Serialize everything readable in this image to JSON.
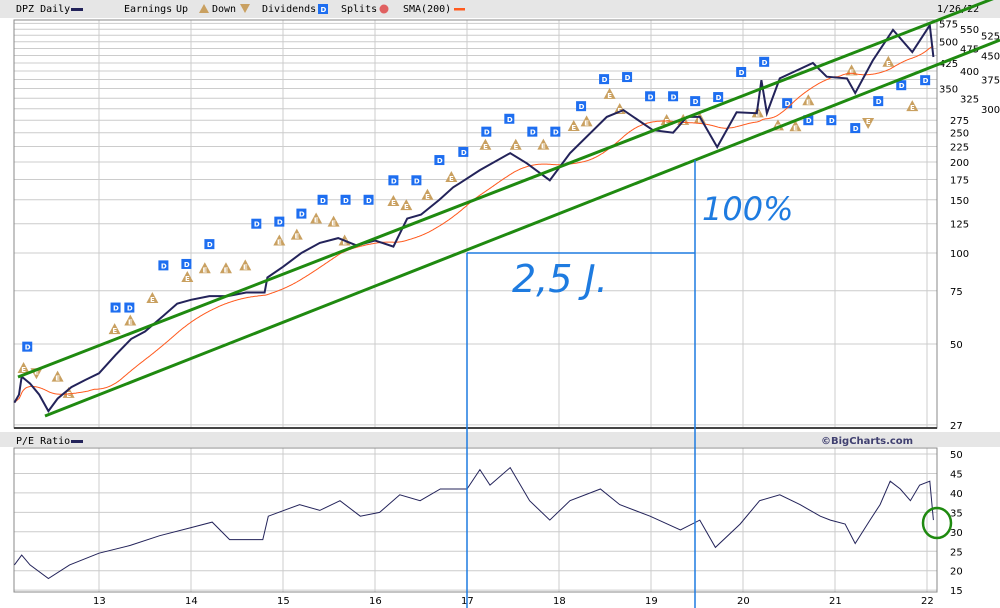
{
  "header": {
    "symbol_label": "DPZ Daily",
    "earnings_label": "Earnings",
    "up_label": "Up",
    "down_label": "Down",
    "dividends_label": "Dividends",
    "splits_label": "Splits",
    "sma_label": "SMA(200)",
    "date": "1/26/22"
  },
  "lower_header": {
    "title": "P/E Ratio",
    "credit": "©BigCharts.com"
  },
  "annotations": {
    "percent_text": "100%",
    "duration_text": "2,5 J."
  },
  "colors": {
    "price": "#23235a",
    "sma": "#ff5a1e",
    "channel": "#1f8a10",
    "annotation": "#1e7be0",
    "dividend": "#1e6ef0",
    "earnings": "#c9a060",
    "header_bg": "#e6e6e6",
    "grid": "#cccccc"
  },
  "chart_data": [
    {
      "type": "line",
      "title": "DPZ Daily",
      "scale": "log",
      "ylim": [
        27,
        575
      ],
      "xlim": [
        2012.08,
        2022.07
      ],
      "grid": true,
      "x_tick_labels": [
        "13",
        "14",
        "15",
        "16",
        "17",
        "18",
        "19",
        "20",
        "21",
        "22"
      ],
      "y_tick_labels": [
        "575",
        "550",
        "525",
        "500",
        "475",
        "450",
        "425",
        "400",
        "375",
        "350",
        "325",
        "300",
        "275",
        "250",
        "225",
        "200",
        "175",
        "150",
        "125",
        "100",
        "75",
        "50",
        "27"
      ],
      "series": [
        {
          "name": "DPZ Daily",
          "points": [
            [
              2012.08,
              32
            ],
            [
              2012.13,
              34
            ],
            [
              2012.16,
              39
            ],
            [
              2012.25,
              37
            ],
            [
              2012.35,
              34
            ],
            [
              2012.45,
              30
            ],
            [
              2012.55,
              33
            ],
            [
              2012.7,
              36
            ],
            [
              2012.85,
              38
            ],
            [
              2013.0,
              40
            ],
            [
              2013.18,
              46
            ],
            [
              2013.35,
              52
            ],
            [
              2013.5,
              55
            ],
            [
              2013.7,
              62
            ],
            [
              2013.85,
              68
            ],
            [
              2014.0,
              70
            ],
            [
              2014.2,
              72
            ],
            [
              2014.4,
              72
            ],
            [
              2014.6,
              74
            ],
            [
              2014.8,
              74
            ],
            [
              2014.83,
              83
            ],
            [
              2015.0,
              90
            ],
            [
              2015.2,
              100
            ],
            [
              2015.4,
              108
            ],
            [
              2015.6,
              112
            ],
            [
              2015.8,
              106
            ],
            [
              2016.0,
              110
            ],
            [
              2016.2,
              105
            ],
            [
              2016.35,
              130
            ],
            [
              2016.5,
              134
            ],
            [
              2016.7,
              150
            ],
            [
              2016.85,
              165
            ],
            [
              2016.92,
              170
            ],
            [
              2017.14,
              188
            ],
            [
              2017.47,
              214
            ],
            [
              2017.65,
              198
            ],
            [
              2017.9,
              174
            ],
            [
              2018.12,
              214
            ],
            [
              2018.52,
              282
            ],
            [
              2018.7,
              297
            ],
            [
              2019.02,
              255
            ],
            [
              2019.24,
              250
            ],
            [
              2019.39,
              282
            ],
            [
              2019.53,
              282
            ],
            [
              2019.72,
              224
            ],
            [
              2019.93,
              292
            ],
            [
              2020.15,
              290
            ],
            [
              2020.2,
              373
            ],
            [
              2020.26,
              290
            ],
            [
              2020.4,
              378
            ],
            [
              2020.76,
              425
            ],
            [
              2020.91,
              383
            ],
            [
              2021.13,
              378
            ],
            [
              2021.22,
              338
            ],
            [
              2021.41,
              433
            ],
            [
              2021.63,
              547
            ],
            [
              2021.84,
              462
            ],
            [
              2022.03,
              567
            ],
            [
              2022.07,
              445
            ]
          ]
        },
        {
          "name": "SMA(200)",
          "computed_from": "DPZ Daily"
        }
      ],
      "dividends": [
        [
          2012.22,
          49
        ],
        [
          2013.18,
          66
        ],
        [
          2013.33,
          66
        ],
        [
          2013.7,
          91
        ],
        [
          2013.95,
          92
        ],
        [
          2014.2,
          107
        ],
        [
          2014.71,
          125
        ],
        [
          2014.96,
          127
        ],
        [
          2015.2,
          135
        ],
        [
          2015.43,
          150
        ],
        [
          2015.68,
          150
        ],
        [
          2015.93,
          150
        ],
        [
          2016.2,
          174
        ],
        [
          2016.45,
          174
        ],
        [
          2016.7,
          203
        ],
        [
          2016.96,
          216
        ],
        [
          2017.21,
          252
        ],
        [
          2017.46,
          278
        ],
        [
          2017.71,
          252
        ],
        [
          2017.96,
          252
        ],
        [
          2018.24,
          306
        ],
        [
          2018.49,
          376
        ],
        [
          2018.74,
          382
        ],
        [
          2018.99,
          330
        ],
        [
          2019.24,
          330
        ],
        [
          2019.48,
          318
        ],
        [
          2019.73,
          328
        ],
        [
          2019.98,
          397
        ],
        [
          2020.23,
          429
        ],
        [
          2020.48,
          313
        ],
        [
          2020.71,
          275
        ],
        [
          2020.96,
          275
        ],
        [
          2021.22,
          259
        ],
        [
          2021.47,
          318
        ],
        [
          2021.72,
          359
        ],
        [
          2021.98,
          373
        ]
      ],
      "earnings_up": [
        [
          2012.18,
          46
        ],
        [
          2012.55,
          39
        ],
        [
          2012.67,
          42
        ],
        [
          2013.17,
          56
        ],
        [
          2013.34,
          66
        ],
        [
          2013.58,
          71
        ],
        [
          2013.96,
          92
        ],
        [
          2014.15,
          89
        ],
        [
          2014.38,
          89
        ],
        [
          2014.59,
          91
        ],
        [
          2014.96,
          110
        ],
        [
          2015.15,
          127
        ],
        [
          2015.36,
          130
        ],
        [
          2015.55,
          127
        ],
        [
          2015.67,
          110
        ],
        [
          2016.2,
          164
        ],
        [
          2016.34,
          144
        ],
        [
          2016.57,
          172
        ],
        [
          2016.83,
          197
        ],
        [
          2017.2,
          228
        ],
        [
          2017.53,
          228
        ],
        [
          2017.83,
          252
        ],
        [
          2018.16,
          263
        ],
        [
          2018.3,
          301
        ],
        [
          2018.55,
          336
        ],
        [
          2018.66,
          365
        ],
        [
          2019.17,
          304
        ],
        [
          2019.35,
          336
        ],
        [
          2019.53,
          340
        ],
        [
          2020.16,
          292
        ],
        [
          2020.38,
          292
        ],
        [
          2020.57,
          320
        ],
        [
          2020.71,
          320
        ],
        [
          2021.18,
          402
        ],
        [
          2021.58,
          429
        ],
        [
          2021.84,
          373
        ]
      ],
      "earnings_down": [
        [
          2012.32,
          40
        ],
        [
          2021.36,
          328
        ]
      ]
    },
    {
      "type": "line",
      "title": "P/E Ratio",
      "ylim": [
        15,
        50
      ],
      "grid": true,
      "x_tick_labels": [
        "13",
        "14",
        "15",
        "16",
        "17",
        "18",
        "19",
        "20",
        "21",
        "22"
      ],
      "y_tick_labels": [
        "50",
        "45",
        "40",
        "35",
        "30",
        "25",
        "20",
        "15"
      ],
      "series": [
        {
          "name": "P/E Ratio",
          "points": [
            [
              2012.08,
              21.5
            ],
            [
              2012.16,
              24
            ],
            [
              2012.25,
              21.5
            ],
            [
              2012.45,
              18
            ],
            [
              2012.68,
              21.5
            ],
            [
              2013.0,
              24.5
            ],
            [
              2013.34,
              26.5
            ],
            [
              2013.66,
              29
            ],
            [
              2013.99,
              31
            ],
            [
              2014.23,
              32.5
            ],
            [
              2014.42,
              28
            ],
            [
              2014.78,
              28
            ],
            [
              2014.84,
              34
            ],
            [
              2015.18,
              37
            ],
            [
              2015.4,
              35.5
            ],
            [
              2015.62,
              38
            ],
            [
              2015.84,
              34
            ],
            [
              2016.05,
              35
            ],
            [
              2016.27,
              39.5
            ],
            [
              2016.49,
              38
            ],
            [
              2016.71,
              41
            ],
            [
              2017.0,
              41
            ],
            [
              2017.14,
              46
            ],
            [
              2017.25,
              42
            ],
            [
              2017.47,
              46.5
            ],
            [
              2017.68,
              38
            ],
            [
              2017.9,
              33
            ],
            [
              2018.12,
              38
            ],
            [
              2018.45,
              41
            ],
            [
              2018.66,
              37
            ],
            [
              2018.99,
              34
            ],
            [
              2019.32,
              30.5
            ],
            [
              2019.53,
              33
            ],
            [
              2019.7,
              26
            ],
            [
              2019.97,
              32
            ],
            [
              2020.18,
              38
            ],
            [
              2020.4,
              39.5
            ],
            [
              2020.62,
              37
            ],
            [
              2020.84,
              34
            ],
            [
              2020.95,
              33
            ],
            [
              2021.11,
              32
            ],
            [
              2021.22,
              27
            ],
            [
              2021.38,
              33
            ],
            [
              2021.49,
              37
            ],
            [
              2021.6,
              43
            ],
            [
              2021.71,
              41
            ],
            [
              2021.82,
              38
            ],
            [
              2021.92,
              42
            ],
            [
              2022.03,
              43
            ],
            [
              2022.07,
              33
            ]
          ]
        }
      ]
    }
  ]
}
